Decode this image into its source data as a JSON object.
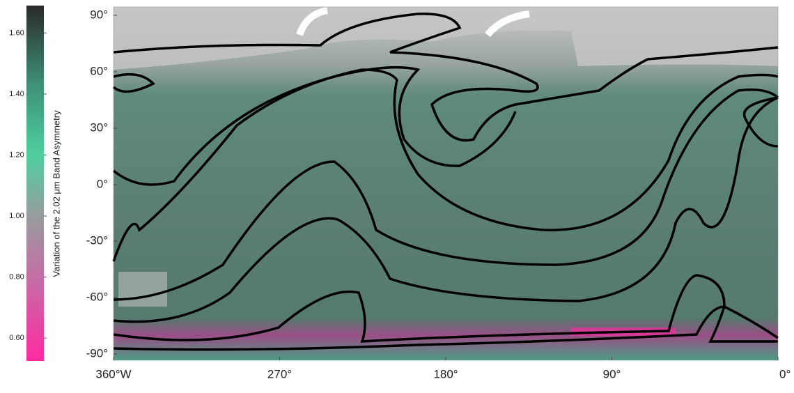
{
  "chart_data": {
    "type": "map",
    "colorbar": {
      "label": "Variation of the 2.02 μm Band Asymmetry",
      "lim": [
        0.525,
        1.69
      ],
      "ticks": [
        {
          "value": 0.6,
          "label": "0.60"
        },
        {
          "value": 0.8,
          "label": "0.80"
        },
        {
          "value": 1.0,
          "label": "1.00"
        },
        {
          "value": 1.2,
          "label": "1.20"
        },
        {
          "value": 1.4,
          "label": "1.40"
        },
        {
          "value": 1.6,
          "label": "1.60"
        }
      ]
    },
    "xlim": [
      360,
      0
    ],
    "xticks": [
      {
        "value": 360,
        "label": "360°W"
      },
      {
        "value": 270,
        "label": "270°"
      },
      {
        "value": 180,
        "label": "180°"
      },
      {
        "value": 90,
        "label": "90°"
      },
      {
        "value": 0,
        "label": "0°"
      }
    ],
    "ylim": [
      -93.3,
      94.4
    ],
    "yticks": [
      {
        "value": 90,
        "label": "90°"
      },
      {
        "value": 60,
        "label": "60°"
      },
      {
        "value": 30,
        "label": "30°"
      },
      {
        "value": 0,
        "label": "0°"
      },
      {
        "value": -30,
        "label": "-30°"
      },
      {
        "value": -60,
        "label": "-60°"
      },
      {
        "value": -90,
        "label": "-90°"
      }
    ]
  }
}
